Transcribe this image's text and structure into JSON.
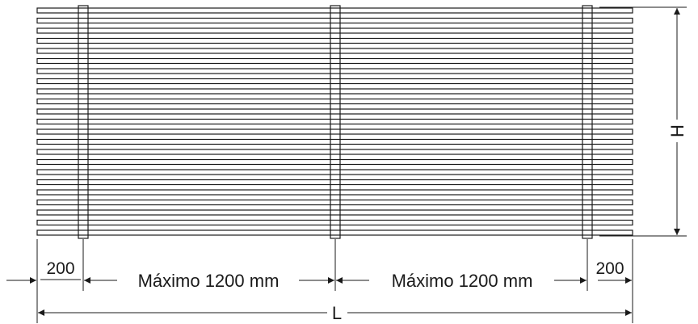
{
  "dimensions": {
    "left_margin": "200",
    "span_1": "Máximo 1200 mm",
    "span_2": "Máximo 1200 mm",
    "right_margin": "200",
    "total_length": "L",
    "height": "H"
  },
  "panel": {
    "slat_count": 23,
    "support_bar_count": 3
  }
}
